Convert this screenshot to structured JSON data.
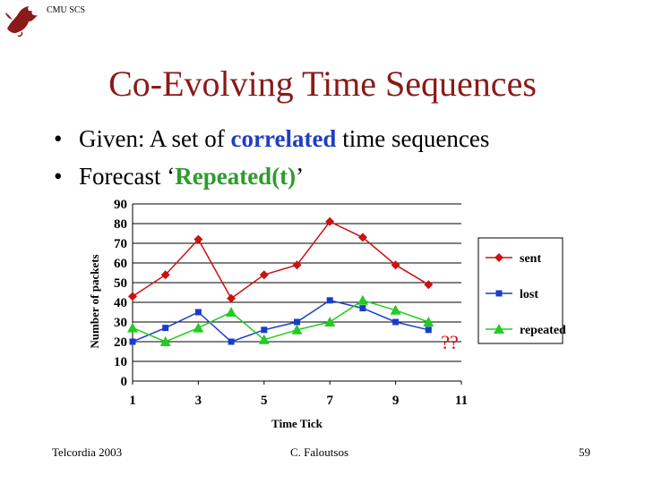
{
  "header": {
    "label": "CMU SCS"
  },
  "title": "Co-Evolving Time Sequences",
  "bullets": [
    {
      "prefix": "Given: A set of ",
      "highlight": "correlated",
      "suffix": " time sequences",
      "color": "#1f3fbf"
    },
    {
      "prefix": "Forecast ‘",
      "highlight": "Repeated(t)",
      "suffix": "’",
      "color": "#2e9b2e"
    }
  ],
  "chart_data": {
    "type": "line",
    "xlabel": "Time Tick",
    "ylabel": "Number of packets",
    "x_ticks": [
      "1",
      "3",
      "5",
      "7",
      "9",
      "11"
    ],
    "y_ticks": [
      "0",
      "10",
      "20",
      "30",
      "40",
      "50",
      "60",
      "70",
      "80",
      "90"
    ],
    "xlim": [
      1,
      11
    ],
    "ylim": [
      0,
      90
    ],
    "grid": "horizontal",
    "legend_position": "right",
    "annotation": "??",
    "series": [
      {
        "name": "sent",
        "color": "#cc1111",
        "marker": "diamond",
        "x": [
          1,
          2,
          3,
          4,
          5,
          6,
          7,
          8,
          9,
          10
        ],
        "values": [
          43,
          54,
          72,
          42,
          54,
          59,
          81,
          73,
          59,
          49
        ]
      },
      {
        "name": "lost",
        "color": "#1a3ccc",
        "marker": "square",
        "x": [
          1,
          2,
          3,
          4,
          5,
          6,
          7,
          8,
          9,
          10
        ],
        "values": [
          20,
          27,
          35,
          20,
          26,
          30,
          41,
          37,
          30,
          26
        ]
      },
      {
        "name": "repeated",
        "color": "#22cc22",
        "marker": "triangle",
        "x": [
          1,
          2,
          3,
          4,
          5,
          6,
          7,
          8,
          9,
          10
        ],
        "values": [
          27,
          20,
          27,
          35,
          21,
          26,
          30,
          41,
          36,
          30
        ]
      }
    ]
  },
  "footer": {
    "left": "Telcordia 2003",
    "center": "C. Faloutsos",
    "right": "59"
  }
}
